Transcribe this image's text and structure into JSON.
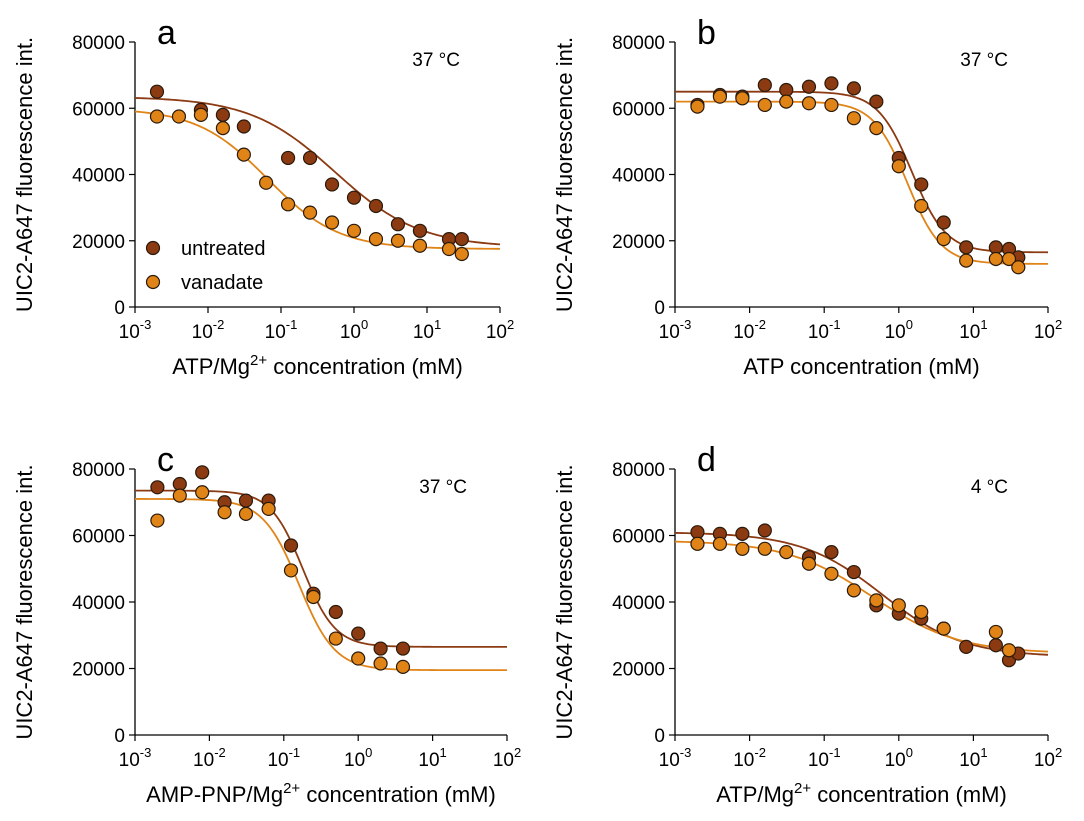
{
  "colors": {
    "untreated": "#8b3a12",
    "vanadate": "#e08418",
    "untreated_line": "#8b3a12",
    "vanadate_line": "#e08418"
  },
  "chart_data": [
    {
      "type": "scatter",
      "panel": "a",
      "annotation": "37 °C",
      "xlabel": "ATP/Mg²⁺ concentration (mM)",
      "ylabel": "UIC2-A647 fluorescence int.",
      "xscale": "log",
      "xlim": [
        0.001,
        100
      ],
      "ylim": [
        0,
        80000
      ],
      "yticks": [
        "0",
        "20000",
        "40000",
        "60000",
        "80000"
      ],
      "xticks": [
        "10⁻³",
        "10⁻²",
        "10⁻¹",
        "10⁰",
        "10¹",
        "10²"
      ],
      "legend": {
        "position": "bottom-left",
        "entries": [
          "untreated",
          "vanadate"
        ]
      },
      "series": [
        {
          "name": "untreated",
          "points": [
            [
              0.002,
              65000
            ],
            [
              0.008,
              59500
            ],
            [
              0.016,
              58000
            ],
            [
              0.031,
              54500
            ],
            [
              0.125,
              45000
            ],
            [
              0.25,
              45000
            ],
            [
              0.5,
              37000
            ],
            [
              1,
              33000
            ],
            [
              2,
              30500
            ],
            [
              4,
              25000
            ],
            [
              8,
              23000
            ],
            [
              20,
              20500
            ],
            [
              30,
              20500
            ]
          ],
          "fit": {
            "bottom": 18000,
            "top": 63500,
            "ec50": 0.55,
            "hill": 0.75
          }
        },
        {
          "name": "vanadate",
          "points": [
            [
              0.002,
              57500
            ],
            [
              0.004,
              57500
            ],
            [
              0.008,
              58000
            ],
            [
              0.016,
              54000
            ],
            [
              0.031,
              46000
            ],
            [
              0.0625,
              37500
            ],
            [
              0.125,
              31000
            ],
            [
              0.25,
              28500
            ],
            [
              0.5,
              25500
            ],
            [
              1,
              23000
            ],
            [
              2,
              20500
            ],
            [
              4,
              20000
            ],
            [
              8,
              18500
            ],
            [
              20,
              17500
            ],
            [
              30,
              16000
            ]
          ],
          "fit": {
            "bottom": 17500,
            "top": 60000,
            "ec50": 0.065,
            "hill": 0.9
          }
        }
      ]
    },
    {
      "type": "scatter",
      "panel": "b",
      "annotation": "37 °C",
      "xlabel": "ATP concentration (mM)",
      "ylabel": "UIC2-A647 fluorescence int.",
      "xscale": "log",
      "xlim": [
        0.001,
        100
      ],
      "ylim": [
        0,
        80000
      ],
      "yticks": [
        "0",
        "20000",
        "40000",
        "60000",
        "80000"
      ],
      "xticks": [
        "10⁻³",
        "10⁻²",
        "10⁻¹",
        "10⁰",
        "10¹",
        "10²"
      ],
      "series": [
        {
          "name": "untreated",
          "points": [
            [
              0.002,
              61000
            ],
            [
              0.004,
              64000
            ],
            [
              0.008,
              63500
            ],
            [
              0.016,
              67000
            ],
            [
              0.031,
              65500
            ],
            [
              0.0625,
              66500
            ],
            [
              0.125,
              67500
            ],
            [
              0.25,
              66000
            ],
            [
              0.5,
              62000
            ],
            [
              1,
              45000
            ],
            [
              2,
              37000
            ],
            [
              4,
              25500
            ],
            [
              8,
              18000
            ],
            [
              20,
              18000
            ],
            [
              30,
              17500
            ],
            [
              40,
              15000
            ]
          ],
          "fit": {
            "bottom": 16500,
            "top": 65000,
            "ec50": 1.5,
            "hill": 1.9
          }
        },
        {
          "name": "vanadate",
          "points": [
            [
              0.002,
              60500
            ],
            [
              0.004,
              63500
            ],
            [
              0.008,
              63000
            ],
            [
              0.016,
              61000
            ],
            [
              0.031,
              62000
            ],
            [
              0.0625,
              61500
            ],
            [
              0.125,
              61000
            ],
            [
              0.25,
              57000
            ],
            [
              0.5,
              54000
            ],
            [
              1,
              42500
            ],
            [
              2,
              30500
            ],
            [
              4,
              20500
            ],
            [
              8,
              14000
            ],
            [
              20,
              14500
            ],
            [
              30,
              14500
            ],
            [
              40,
              12000
            ]
          ],
          "fit": {
            "bottom": 13000,
            "top": 62000,
            "ec50": 1.3,
            "hill": 1.9
          }
        }
      ]
    },
    {
      "type": "scatter",
      "panel": "c",
      "annotation": "37 °C",
      "xlabel": "AMP-PNP/Mg²⁺ concentration (mM)",
      "ylabel": "UIC2-A647 fluorescence int.",
      "xscale": "log",
      "xlim": [
        0.001,
        100
      ],
      "ylim": [
        0,
        80000
      ],
      "yticks": [
        "0",
        "20000",
        "40000",
        "60000",
        "80000"
      ],
      "xticks": [
        "10⁻³",
        "10⁻²",
        "10⁻¹",
        "10⁰",
        "10¹",
        "10²"
      ],
      "series": [
        {
          "name": "untreated",
          "points": [
            [
              0.002,
              74500
            ],
            [
              0.004,
              75500
            ],
            [
              0.008,
              79000
            ],
            [
              0.016,
              70000
            ],
            [
              0.031,
              70500
            ],
            [
              0.0625,
              70500
            ],
            [
              0.125,
              57000
            ],
            [
              0.25,
              42500
            ],
            [
              0.5,
              37000
            ],
            [
              1,
              30500
            ],
            [
              2,
              26000
            ],
            [
              4,
              26000
            ]
          ],
          "fit": {
            "bottom": 26500,
            "top": 73500,
            "ec50": 0.18,
            "hill": 2.0
          }
        },
        {
          "name": "vanadate",
          "points": [
            [
              0.002,
              64500
            ],
            [
              0.004,
              72000
            ],
            [
              0.008,
              73000
            ],
            [
              0.016,
              67000
            ],
            [
              0.031,
              66500
            ],
            [
              0.0625,
              68000
            ],
            [
              0.125,
              49500
            ],
            [
              0.25,
              41500
            ],
            [
              0.5,
              29000
            ],
            [
              1,
              23000
            ],
            [
              2,
              21500
            ],
            [
              4,
              20500
            ]
          ],
          "fit": {
            "bottom": 19500,
            "top": 71000,
            "ec50": 0.16,
            "hill": 1.8
          }
        }
      ]
    },
    {
      "type": "scatter",
      "panel": "d",
      "annotation": "4 °C",
      "xlabel": "ATP/Mg²⁺ concentration (mM)",
      "ylabel": "UIC2-A647 fluorescence int.",
      "xscale": "log",
      "xlim": [
        0.001,
        100
      ],
      "ylim": [
        0,
        80000
      ],
      "yticks": [
        "0",
        "20000",
        "40000",
        "60000",
        "80000"
      ],
      "xticks": [
        "10⁻³",
        "10⁻²",
        "10⁻¹",
        "10⁰",
        "10¹",
        "10²"
      ],
      "series": [
        {
          "name": "untreated",
          "points": [
            [
              0.002,
              61000
            ],
            [
              0.004,
              60500
            ],
            [
              0.008,
              60500
            ],
            [
              0.016,
              61500
            ],
            [
              0.0625,
              53500
            ],
            [
              0.125,
              55000
            ],
            [
              0.25,
              49000
            ],
            [
              0.5,
              39000
            ],
            [
              1,
              36500
            ],
            [
              2,
              35000
            ],
            [
              4,
              32000
            ],
            [
              8,
              26500
            ],
            [
              20,
              27000
            ],
            [
              30,
              22500
            ],
            [
              40,
              24500
            ]
          ],
          "fit": {
            "bottom": 23500,
            "top": 61000,
            "ec50": 0.6,
            "hill": 0.8
          }
        },
        {
          "name": "vanadate",
          "points": [
            [
              0.002,
              57500
            ],
            [
              0.004,
              57500
            ],
            [
              0.008,
              56000
            ],
            [
              0.016,
              56000
            ],
            [
              0.031,
              55000
            ],
            [
              0.0625,
              51500
            ],
            [
              0.125,
              48500
            ],
            [
              0.25,
              43500
            ],
            [
              0.5,
              40500
            ],
            [
              1,
              39000
            ],
            [
              2,
              37000
            ],
            [
              4,
              32000
            ],
            [
              20,
              31000
            ],
            [
              30,
              25500
            ]
          ],
          "fit": {
            "bottom": 24500,
            "top": 58500,
            "ec50": 0.45,
            "hill": 0.75
          }
        }
      ]
    }
  ]
}
